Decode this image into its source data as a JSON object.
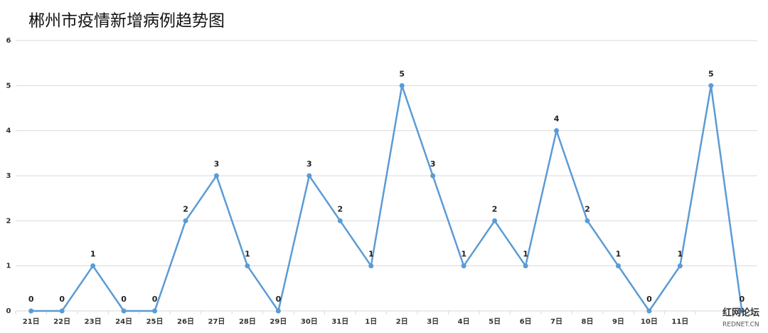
{
  "chart_data": {
    "type": "line",
    "title": "郴州市疫情新增病例趋势图",
    "categories": [
      "21日",
      "22日",
      "23日",
      "24日",
      "25日",
      "26日",
      "27日",
      "28日",
      "29日",
      "30日",
      "31日",
      "1日",
      "2日",
      "3日",
      "4日",
      "5日",
      "6日",
      "7日",
      "8日",
      "9日",
      "10日",
      "11日",
      null,
      null
    ],
    "series": [
      {
        "name": "新增病例",
        "color": "#5b9bd5",
        "values": [
          0,
          0,
          1,
          0,
          0,
          2,
          3,
          1,
          0,
          3,
          2,
          1,
          5,
          3,
          1,
          2,
          1,
          4,
          2,
          1,
          0,
          1,
          5,
          0
        ]
      }
    ],
    "ylim": [
      0,
      6
    ],
    "yticks": [
      0,
      1,
      2,
      3,
      4,
      5,
      6
    ],
    "grid": true,
    "watermark": {
      "name": "红网论坛",
      "site": "REDNET.CN"
    }
  }
}
